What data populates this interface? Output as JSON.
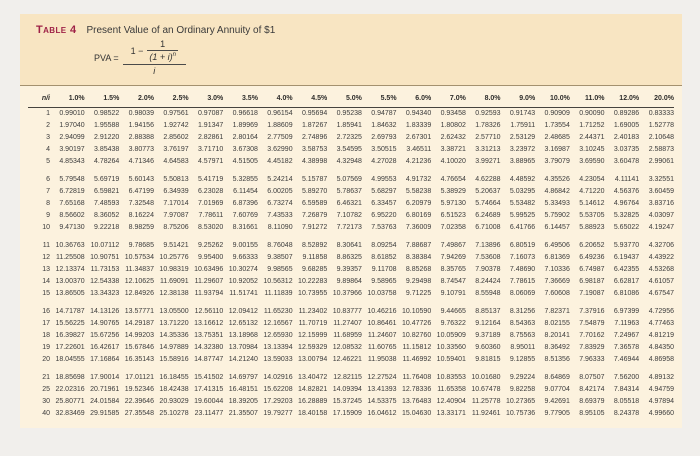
{
  "title": {
    "label": "Table 4",
    "text": "Present Value of an Ordinary Annuity of $1"
  },
  "colors": {
    "accent": "#9e2146",
    "panel_top": "#f8e5c2",
    "panel_body": "#fcf2de",
    "rule": "#46433e"
  },
  "formula": {
    "lhs": "PVA =",
    "one_minus": "1 −",
    "inner_num": "1",
    "inner_den_base": "(1 + i)",
    "inner_den_exp": "n",
    "den": "i"
  },
  "table": {
    "corner": "n/i",
    "headers": [
      "1.0%",
      "1.5%",
      "2.0%",
      "2.5%",
      "3.0%",
      "3.5%",
      "4.0%",
      "4.5%",
      "5.0%",
      "5.5%",
      "6.0%",
      "7.0%",
      "8.0%",
      "9.0%",
      "10.0%",
      "11.0%",
      "12.0%",
      "20.0%"
    ],
    "groups": [
      [
        {
          "n": "1",
          "v": [
            "0.99010",
            "0.98522",
            "0.98039",
            "0.97561",
            "0.97087",
            "0.96618",
            "0.96154",
            "0.95694",
            "0.95238",
            "0.94787",
            "0.94340",
            "0.93458",
            "0.92593",
            "0.91743",
            "0.90909",
            "0.90090",
            "0.89286",
            "0.83333"
          ]
        },
        {
          "n": "2",
          "v": [
            "1.97040",
            "1.95588",
            "1.94156",
            "1.92742",
            "1.91347",
            "1.89969",
            "1.88609",
            "1.87267",
            "1.85941",
            "1.84632",
            "1.83339",
            "1.80802",
            "1.78326",
            "1.75911",
            "1.73554",
            "1.71252",
            "1.69005",
            "1.52778"
          ]
        },
        {
          "n": "3",
          "v": [
            "2.94099",
            "2.91220",
            "2.88388",
            "2.85602",
            "2.82861",
            "2.80164",
            "2.77509",
            "2.74896",
            "2.72325",
            "2.69793",
            "2.67301",
            "2.62432",
            "2.57710",
            "2.53129",
            "2.48685",
            "2.44371",
            "2.40183",
            "2.10648"
          ]
        },
        {
          "n": "4",
          "v": [
            "3.90197",
            "3.85438",
            "3.80773",
            "3.76197",
            "3.71710",
            "3.67308",
            "3.62990",
            "3.58753",
            "3.54595",
            "3.50515",
            "3.46511",
            "3.38721",
            "3.31213",
            "3.23972",
            "3.16987",
            "3.10245",
            "3.03735",
            "2.58873"
          ]
        },
        {
          "n": "5",
          "v": [
            "4.85343",
            "4.78264",
            "4.71346",
            "4.64583",
            "4.57971",
            "4.51505",
            "4.45182",
            "4.38998",
            "4.32948",
            "4.27028",
            "4.21236",
            "4.10020",
            "3.99271",
            "3.88965",
            "3.79079",
            "3.69590",
            "3.60478",
            "2.99061"
          ]
        }
      ],
      [
        {
          "n": "6",
          "v": [
            "5.79548",
            "5.69719",
            "5.60143",
            "5.50813",
            "5.41719",
            "5.32855",
            "5.24214",
            "5.15787",
            "5.07569",
            "4.99553",
            "4.91732",
            "4.76654",
            "4.62288",
            "4.48592",
            "4.35526",
            "4.23054",
            "4.11141",
            "3.32551"
          ]
        },
        {
          "n": "7",
          "v": [
            "6.72819",
            "6.59821",
            "6.47199",
            "6.34939",
            "6.23028",
            "6.11454",
            "6.00205",
            "5.89270",
            "5.78637",
            "5.68297",
            "5.58238",
            "5.38929",
            "5.20637",
            "5.03295",
            "4.86842",
            "4.71220",
            "4.56376",
            "3.60459"
          ]
        },
        {
          "n": "8",
          "v": [
            "7.65168",
            "7.48593",
            "7.32548",
            "7.17014",
            "7.01969",
            "6.87396",
            "6.73274",
            "6.59589",
            "6.46321",
            "6.33457",
            "6.20979",
            "5.97130",
            "5.74664",
            "5.53482",
            "5.33493",
            "5.14612",
            "4.96764",
            "3.83716"
          ]
        },
        {
          "n": "9",
          "v": [
            "8.56602",
            "8.36052",
            "8.16224",
            "7.97087",
            "7.78611",
            "7.60769",
            "7.43533",
            "7.26879",
            "7.10782",
            "6.95220",
            "6.80169",
            "6.51523",
            "6.24689",
            "5.99525",
            "5.75902",
            "5.53705",
            "5.32825",
            "4.03097"
          ]
        },
        {
          "n": "10",
          "v": [
            "9.47130",
            "9.22218",
            "8.98259",
            "8.75206",
            "8.53020",
            "8.31661",
            "8.11090",
            "7.91272",
            "7.72173",
            "7.53763",
            "7.36009",
            "7.02358",
            "6.71008",
            "6.41766",
            "6.14457",
            "5.88923",
            "5.65022",
            "4.19247"
          ]
        }
      ],
      [
        {
          "n": "11",
          "v": [
            "10.36763",
            "10.07112",
            "9.78685",
            "9.51421",
            "9.25262",
            "9.00155",
            "8.76048",
            "8.52892",
            "8.30641",
            "8.09254",
            "7.88687",
            "7.49867",
            "7.13896",
            "6.80519",
            "6.49506",
            "6.20652",
            "5.93770",
            "4.32706"
          ]
        },
        {
          "n": "12",
          "v": [
            "11.25508",
            "10.90751",
            "10.57534",
            "10.25776",
            "9.95400",
            "9.66333",
            "9.38507",
            "9.11858",
            "8.86325",
            "8.61852",
            "8.38384",
            "7.94269",
            "7.53608",
            "7.16073",
            "6.81369",
            "6.49236",
            "6.19437",
            "4.43922"
          ]
        },
        {
          "n": "13",
          "v": [
            "12.13374",
            "11.73153",
            "11.34837",
            "10.98319",
            "10.63496",
            "10.30274",
            "9.98565",
            "9.68285",
            "9.39357",
            "9.11708",
            "8.85268",
            "8.35765",
            "7.90378",
            "7.48690",
            "7.10336",
            "6.74987",
            "6.42355",
            "4.53268"
          ]
        },
        {
          "n": "14",
          "v": [
            "13.00370",
            "12.54338",
            "12.10625",
            "11.69091",
            "11.29607",
            "10.92052",
            "10.56312",
            "10.22283",
            "9.89864",
            "9.58965",
            "9.29498",
            "8.74547",
            "8.24424",
            "7.78615",
            "7.36669",
            "6.98187",
            "6.62817",
            "4.61057"
          ]
        },
        {
          "n": "15",
          "v": [
            "13.86505",
            "13.34323",
            "12.84926",
            "12.38138",
            "11.93794",
            "11.51741",
            "11.11839",
            "10.73955",
            "10.37966",
            "10.03758",
            "9.71225",
            "9.10791",
            "8.55948",
            "8.06069",
            "7.60608",
            "7.19087",
            "6.81086",
            "4.67547"
          ]
        }
      ],
      [
        {
          "n": "16",
          "v": [
            "14.71787",
            "14.13126",
            "13.57771",
            "13.05500",
            "12.56110",
            "12.09412",
            "11.65230",
            "11.23402",
            "10.83777",
            "10.46216",
            "10.10590",
            "9.44665",
            "8.85137",
            "8.31256",
            "7.82371",
            "7.37916",
            "6.97399",
            "4.72956"
          ]
        },
        {
          "n": "17",
          "v": [
            "15.56225",
            "14.90765",
            "14.29187",
            "13.71220",
            "13.16612",
            "12.65132",
            "12.16567",
            "11.70719",
            "11.27407",
            "10.86461",
            "10.47726",
            "9.76322",
            "9.12164",
            "8.54363",
            "8.02155",
            "7.54879",
            "7.11963",
            "4.77463"
          ]
        },
        {
          "n": "18",
          "v": [
            "16.39827",
            "15.67256",
            "14.99203",
            "14.35336",
            "13.75351",
            "13.18968",
            "12.65930",
            "12.15999",
            "11.68959",
            "11.24607",
            "10.82760",
            "10.05909",
            "9.37189",
            "8.75563",
            "8.20141",
            "7.70162",
            "7.24967",
            "4.81219"
          ]
        },
        {
          "n": "19",
          "v": [
            "17.22601",
            "16.42617",
            "15.67846",
            "14.97889",
            "14.32380",
            "13.70984",
            "13.13394",
            "12.59329",
            "12.08532",
            "11.60765",
            "11.15812",
            "10.33560",
            "9.60360",
            "8.95011",
            "8.36492",
            "7.83929",
            "7.36578",
            "4.84350"
          ]
        },
        {
          "n": "20",
          "v": [
            "18.04555",
            "17.16864",
            "16.35143",
            "15.58916",
            "14.87747",
            "14.21240",
            "13.59033",
            "13.00794",
            "12.46221",
            "11.95038",
            "11.46992",
            "10.59401",
            "9.81815",
            "9.12855",
            "8.51356",
            "7.96333",
            "7.46944",
            "4.86958"
          ]
        }
      ],
      [
        {
          "n": "21",
          "v": [
            "18.85698",
            "17.90014",
            "17.01121",
            "16.18455",
            "15.41502",
            "14.69797",
            "14.02916",
            "13.40472",
            "12.82115",
            "12.27524",
            "11.76408",
            "10.83553",
            "10.01680",
            "9.29224",
            "8.64869",
            "8.07507",
            "7.56200",
            "4.89132"
          ]
        },
        {
          "n": "25",
          "v": [
            "22.02316",
            "20.71961",
            "19.52346",
            "18.42438",
            "17.41315",
            "16.48151",
            "15.62208",
            "14.82821",
            "14.09394",
            "13.41393",
            "12.78336",
            "11.65358",
            "10.67478",
            "9.82258",
            "9.07704",
            "8.42174",
            "7.84314",
            "4.94759"
          ]
        },
        {
          "n": "30",
          "v": [
            "25.80771",
            "24.01584",
            "22.39646",
            "20.93029",
            "19.60044",
            "18.39205",
            "17.29203",
            "16.28889",
            "15.37245",
            "14.53375",
            "13.76483",
            "12.40904",
            "11.25778",
            "10.27365",
            "9.42691",
            "8.69379",
            "8.05518",
            "4.97894"
          ]
        },
        {
          "n": "40",
          "v": [
            "32.83469",
            "29.91585",
            "27.35548",
            "25.10278",
            "23.11477",
            "21.35507",
            "19.79277",
            "18.40158",
            "17.15909",
            "16.04612",
            "15.04630",
            "13.33171",
            "11.92461",
            "10.75736",
            "9.77905",
            "8.95105",
            "8.24378",
            "4.99660"
          ]
        }
      ]
    ]
  }
}
